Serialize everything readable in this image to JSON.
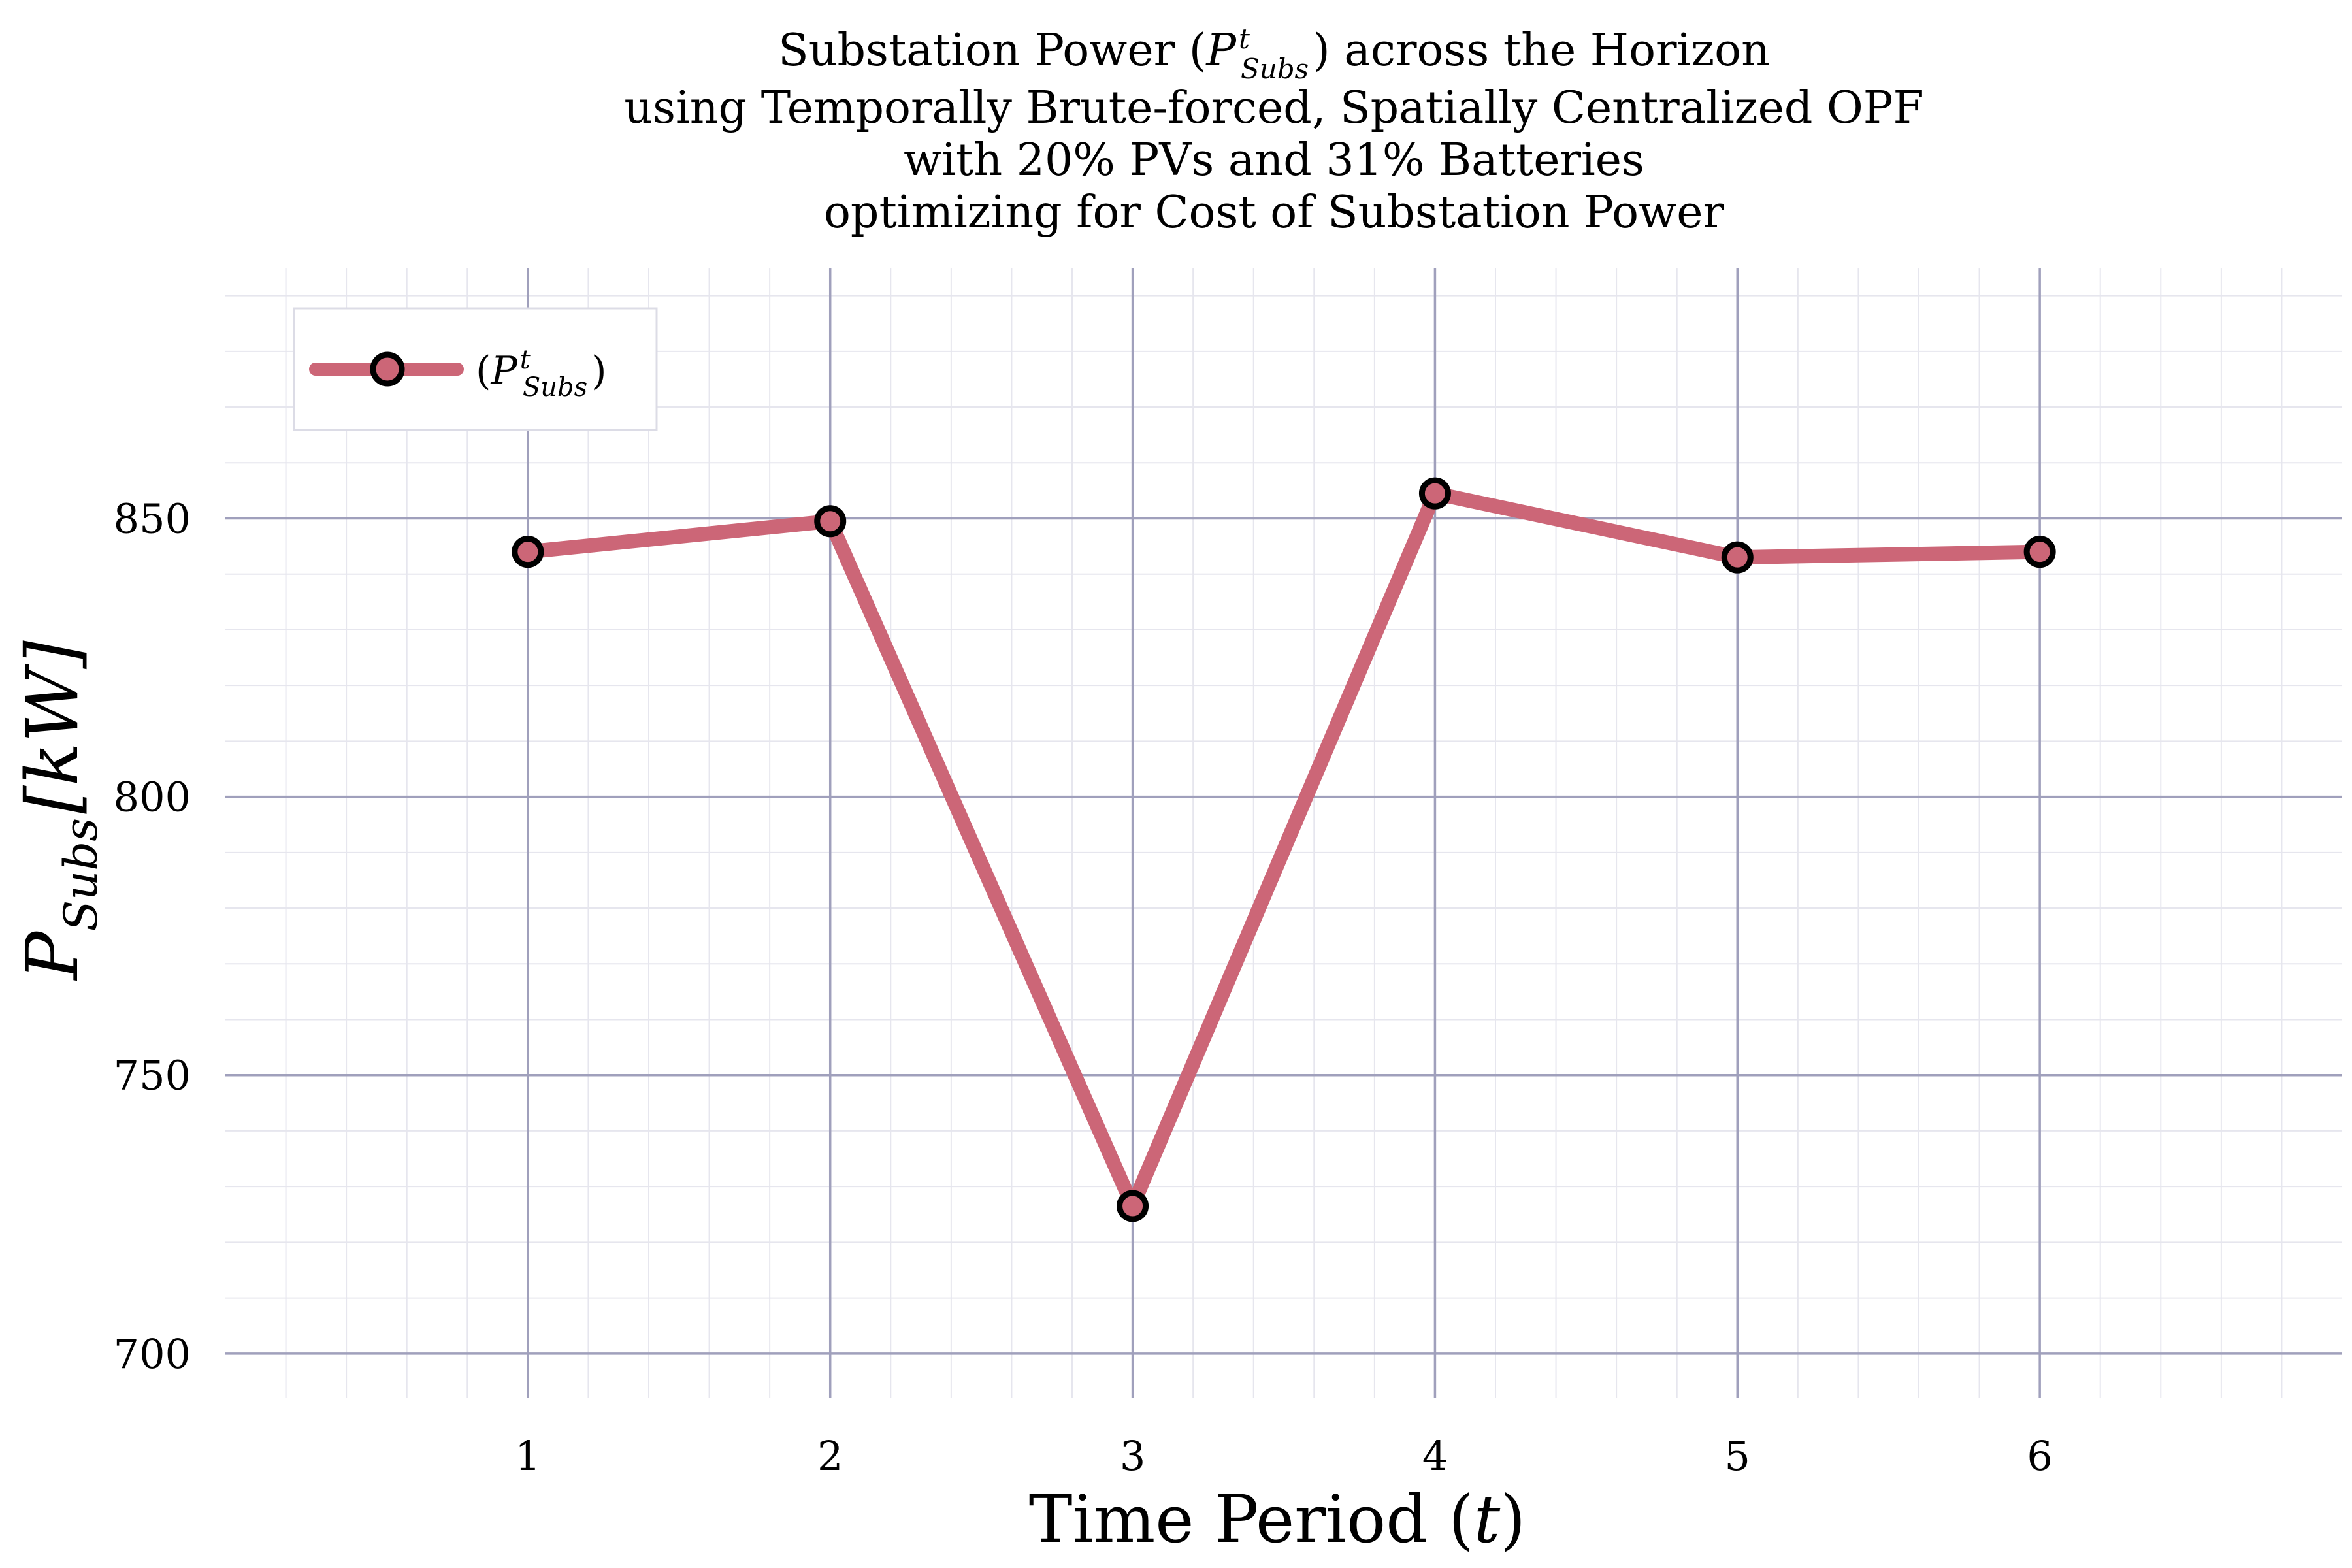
{
  "chart_data": {
    "type": "line",
    "title": {
      "line1_pre": "Substation Power (",
      "symbol": "P",
      "sup": "t",
      "sub": "Subs",
      "line1_post": ") across the Horizon",
      "line2": "using Temporally Brute-forced, Spatially Centralized OPF",
      "line3": "with 20% PVs and 31% Batteries",
      "line4": "optimizing for Cost of Substation Power"
    },
    "xlabel": {
      "text": "Time Period (",
      "var": "t",
      "close": ")"
    },
    "ylabel": {
      "symbol": "P",
      "sub": "Subs",
      "unit": "[kW]"
    },
    "x": [
      1,
      2,
      3,
      4,
      5,
      6
    ],
    "series": [
      {
        "name": {
          "open": "(",
          "symbol": "P",
          "sup": "t",
          "sub": "Subs",
          "close": ")"
        },
        "values": [
          844,
          849.5,
          726.5,
          854.5,
          843,
          844
        ]
      }
    ],
    "xlim": [
      0.0,
      7.0
    ],
    "ylim": [
      692,
      895
    ],
    "xticks": [
      1,
      2,
      3,
      4,
      5,
      6
    ],
    "yticks": [
      700,
      750,
      800,
      850
    ],
    "grid": true,
    "minor_grid": true,
    "legend_position": "top-left"
  },
  "colors": {
    "line": "#cc6677",
    "marker_fill": "#cc6677",
    "marker_edge": "#000000",
    "major_grid": "#a0a0bc",
    "minor_grid": "#e6e6ee"
  }
}
